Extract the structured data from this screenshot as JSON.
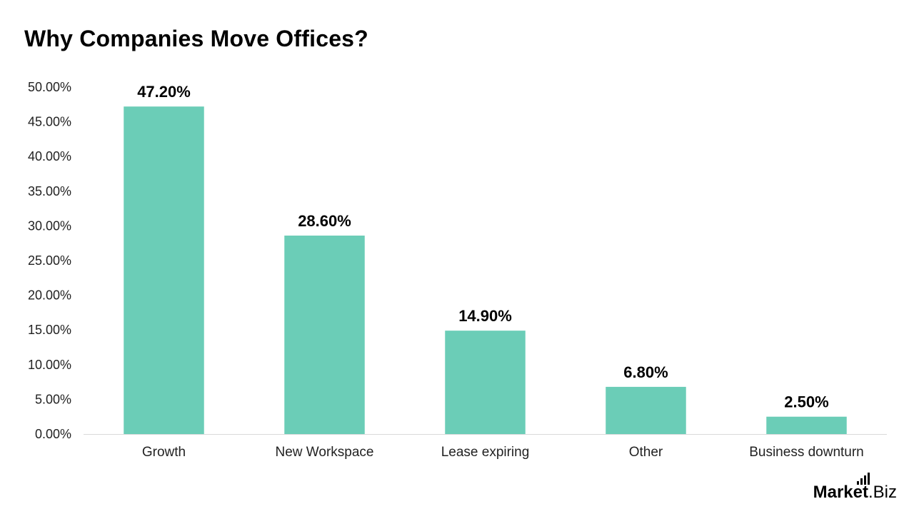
{
  "chart_data": {
    "type": "bar",
    "title": "Why Companies Move Offices?",
    "categories": [
      "Growth",
      "New Workspace",
      "Lease expiring",
      "Other",
      "Business downturn"
    ],
    "values": [
      47.2,
      28.6,
      14.9,
      6.8,
      2.5
    ],
    "data_labels": [
      "47.20%",
      "28.60%",
      "14.90%",
      "6.80%",
      "2.50%"
    ],
    "ylim": [
      0,
      50
    ],
    "y_ticks": [
      0,
      5,
      10,
      15,
      20,
      25,
      30,
      35,
      40,
      45,
      50
    ],
    "y_tick_labels": [
      "0.00%",
      "5.00%",
      "10.00%",
      "15.00%",
      "20.00%",
      "25.00%",
      "30.00%",
      "35.00%",
      "40.00%",
      "45.00%",
      "50.00%"
    ],
    "xlabel": "",
    "ylabel": "",
    "grid": false,
    "legend": "none",
    "bar_color": "#6BCDB7",
    "axis_color": "#d9d9d9"
  },
  "brand": {
    "name": "Market",
    "suffix": ".Biz"
  }
}
